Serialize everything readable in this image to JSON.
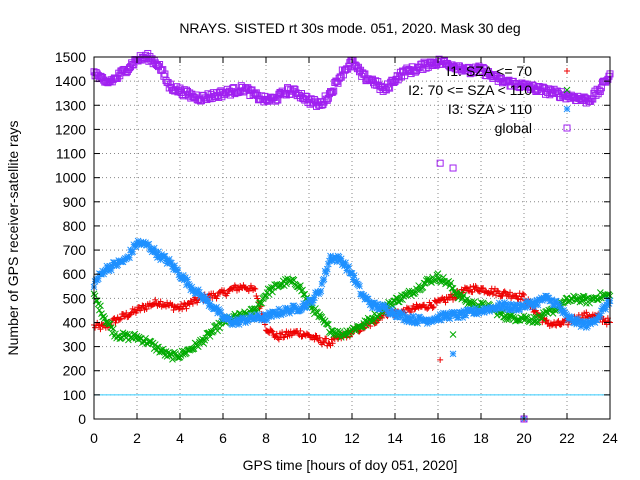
{
  "chart_data": {
    "type": "scatter",
    "title": "NRAYS. SISTED rt 30s mode. 051, 2020. Mask 30 deg",
    "xlabel": "GPS time [hours of doy 051, 2020]",
    "ylabel": "Number of GPS receiver-satellite rays",
    "xlim": [
      0,
      24
    ],
    "ylim": [
      0,
      1500
    ],
    "xticks": [
      0,
      2,
      4,
      6,
      8,
      10,
      12,
      14,
      16,
      18,
      20,
      22,
      24
    ],
    "yticks": [
      0,
      100,
      200,
      300,
      400,
      500,
      600,
      700,
      800,
      900,
      1000,
      1100,
      1200,
      1300,
      1400,
      1500
    ],
    "grid": true,
    "legend_position": "top-right",
    "reference_line": {
      "y": 100,
      "color": "#33ccff"
    },
    "series": [
      {
        "name": "I1: SZA <= 70",
        "marker": "+",
        "color": "#ee0000",
        "x": [
          0,
          0.5,
          1,
          1.5,
          2,
          2.5,
          3,
          3.5,
          4,
          4.5,
          5,
          5.5,
          6,
          6.5,
          7,
          7.5,
          8,
          8.5,
          9,
          9.5,
          10,
          10.5,
          11,
          11.5,
          12,
          12.5,
          13,
          13.5,
          14,
          14.5,
          15,
          15.5,
          16,
          16.5,
          17,
          17.5,
          18,
          18.5,
          19,
          19.5,
          20,
          20.5,
          21,
          21.5,
          22,
          22.5,
          23,
          23.5,
          24
        ],
        "values": [
          385,
          380,
          410,
          430,
          450,
          470,
          485,
          470,
          460,
          480,
          500,
          510,
          520,
          540,
          550,
          530,
          380,
          340,
          350,
          360,
          345,
          325,
          315,
          340,
          360,
          380,
          400,
          440,
          440,
          445,
          460,
          470,
          480,
          500,
          520,
          540,
          540,
          530,
          520,
          515,
          505,
          450,
          400,
          390,
          400,
          420,
          430,
          420,
          400
        ]
      },
      {
        "name": "I2: 70 <= SZA < 110",
        "marker": "x",
        "color": "#00aa00",
        "x": [
          0,
          0.5,
          1,
          1.5,
          2,
          2.5,
          3,
          3.5,
          4,
          4.5,
          5,
          5.5,
          6,
          6.5,
          7,
          7.5,
          8,
          8.5,
          9,
          9.5,
          10,
          10.5,
          11,
          11.5,
          12,
          12.5,
          13,
          13.5,
          14,
          14.5,
          15,
          15.5,
          16,
          16.5,
          17,
          17.5,
          18,
          18.5,
          19,
          19.5,
          20,
          20.5,
          21,
          21.5,
          22,
          22.5,
          23,
          23.5,
          24
        ],
        "values": [
          510,
          420,
          350,
          340,
          340,
          320,
          290,
          260,
          265,
          290,
          320,
          360,
          400,
          420,
          430,
          450,
          520,
          550,
          570,
          560,
          480,
          420,
          370,
          350,
          370,
          390,
          420,
          460,
          490,
          510,
          540,
          570,
          590,
          560,
          510,
          480,
          470,
          460,
          430,
          420,
          420,
          410,
          430,
          460,
          490,
          500,
          490,
          510,
          510
        ]
      },
      {
        "name": "I3: SZA > 110",
        "marker": "*",
        "color": "#1e90ff",
        "x": [
          0,
          0.5,
          1,
          1.5,
          2,
          2.5,
          3,
          3.5,
          4,
          4.5,
          5,
          5.5,
          6,
          6.5,
          7,
          7.5,
          8,
          8.5,
          9,
          9.5,
          10,
          10.5,
          11,
          11.5,
          12,
          12.5,
          13,
          13.5,
          14,
          14.5,
          15,
          15.5,
          16,
          16.5,
          17,
          17.5,
          18,
          18.5,
          19,
          19.5,
          20,
          20.5,
          21,
          21.5,
          22,
          22.5,
          23,
          23.5,
          24
        ],
        "values": [
          560,
          620,
          640,
          660,
          730,
          720,
          680,
          650,
          600,
          550,
          510,
          470,
          420,
          400,
          410,
          420,
          420,
          440,
          450,
          460,
          480,
          530,
          670,
          660,
          600,
          510,
          470,
          460,
          440,
          420,
          410,
          410,
          420,
          430,
          430,
          440,
          450,
          460,
          470,
          460,
          470,
          480,
          500,
          480,
          420,
          400,
          390,
          430,
          490
        ]
      },
      {
        "name": "global",
        "marker": "square",
        "color": "#a020f0",
        "x": [
          0,
          0.5,
          1,
          1.5,
          2,
          2.5,
          3,
          3.5,
          4,
          4.5,
          5,
          5.5,
          6,
          6.5,
          7,
          7.5,
          8,
          8.5,
          9,
          9.5,
          10,
          10.5,
          11,
          11.5,
          12,
          12.5,
          13,
          13.5,
          14,
          14.5,
          15,
          15.5,
          16,
          16.5,
          17,
          17.5,
          18,
          18.5,
          19,
          19.5,
          20,
          20.5,
          21,
          21.5,
          22,
          22.5,
          23,
          23.5,
          24
        ],
        "values": [
          1440,
          1390,
          1410,
          1450,
          1490,
          1500,
          1470,
          1380,
          1360,
          1340,
          1330,
          1340,
          1350,
          1360,
          1370,
          1340,
          1320,
          1330,
          1360,
          1350,
          1320,
          1300,
          1350,
          1430,
          1480,
          1420,
          1400,
          1360,
          1410,
          1440,
          1450,
          1470,
          1480,
          1470,
          1460,
          1440,
          1450,
          1420,
          1400,
          1390,
          1380,
          1370,
          1360,
          1350,
          1340,
          1330,
          1320,
          1360,
          1430
        ]
      }
    ],
    "outliers": [
      {
        "series": "I1: SZA <= 70",
        "x": 16.1,
        "y": 245
      },
      {
        "series": "I2: 70 <= SZA < 110",
        "x": 16.7,
        "y": 350
      },
      {
        "series": "I3: SZA > 110",
        "x": 16.7,
        "y": 270
      },
      {
        "series": "I3: SZA > 110",
        "x": 20,
        "y": 0
      },
      {
        "series": "I1: SZA <= 70",
        "x": 20,
        "y": 0
      },
      {
        "series": "global",
        "x": 16.1,
        "y": 1060
      },
      {
        "series": "global",
        "x": 16.7,
        "y": 1040
      },
      {
        "series": "global",
        "x": 20,
        "y": 0
      }
    ]
  }
}
